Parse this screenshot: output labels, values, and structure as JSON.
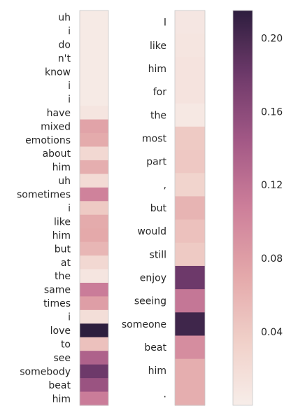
{
  "chart_data": [
    {
      "type": "heatmap",
      "title": "",
      "tokens": [
        "uh",
        "i",
        "do",
        "n't",
        "know",
        "i",
        "i",
        "have",
        "mixed",
        "emotions",
        "about",
        "him",
        "uh",
        "sometimes",
        "i",
        "like",
        "him",
        "but",
        "at",
        "the",
        "same",
        "times",
        "i",
        "love",
        "to",
        "see",
        "somebody",
        "beat",
        "him"
      ],
      "values": [
        0.004,
        0.004,
        0.004,
        0.004,
        0.004,
        0.004,
        0.004,
        0.01,
        0.075,
        0.068,
        0.025,
        0.065,
        0.022,
        0.105,
        0.04,
        0.068,
        0.07,
        0.058,
        0.025,
        0.01,
        0.11,
        0.08,
        0.018,
        0.215,
        0.048,
        0.135,
        0.18,
        0.15,
        0.11
      ]
    },
    {
      "type": "heatmap",
      "title": "",
      "tokens": [
        "I",
        "like",
        "him",
        "for",
        "the",
        "most",
        "part",
        ",",
        "but",
        "would",
        "still",
        "enjoy",
        "seeing",
        "someone",
        "beat",
        "him",
        "."
      ],
      "values": [
        0.008,
        0.01,
        0.012,
        0.012,
        0.006,
        0.04,
        0.042,
        0.03,
        0.06,
        0.048,
        0.04,
        0.18,
        0.115,
        0.205,
        0.095,
        0.065,
        0.065
      ]
    },
    {
      "type": "colorbar",
      "range": [
        0.0,
        0.215
      ],
      "ticks": [
        "0.04",
        "0.08",
        "0.12",
        "0.16",
        "0.20"
      ],
      "tick_values": [
        0.04,
        0.08,
        0.12,
        0.16,
        0.2
      ],
      "colors": [
        "#f7ede9",
        "#f0cfc8",
        "#e3a7a9",
        "#cd7f9a",
        "#a45986",
        "#6f3a6b",
        "#2d1e3e"
      ]
    }
  ]
}
